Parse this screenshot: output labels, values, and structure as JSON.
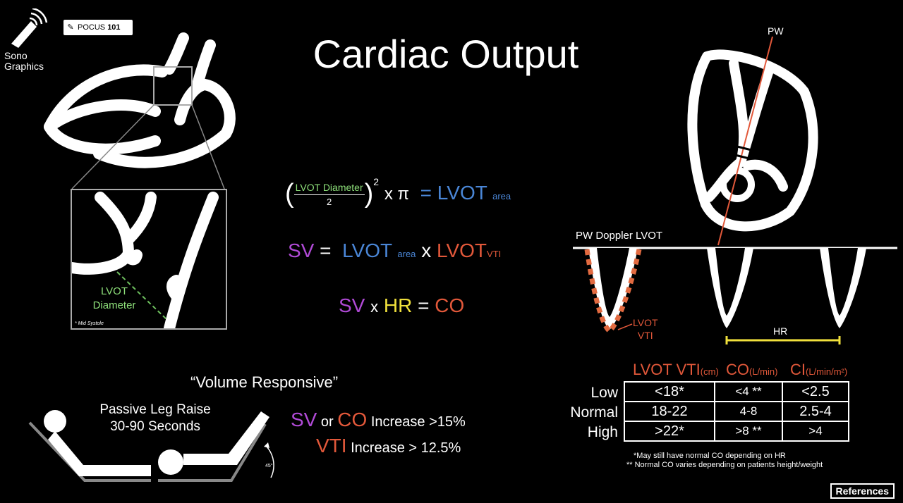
{
  "title": "Cardiac Output",
  "logo": {
    "line1": "Sono",
    "line2": "Graphics",
    "badge_prefix": "POCUS",
    "badge_number": "101"
  },
  "inset": {
    "label_line1": "LVOT",
    "label_line2": "Diameter",
    "note": "* Mid Systole"
  },
  "formulas": {
    "f1_numerator": "LVOT Diameter",
    "f1_denominator": "2",
    "f1_power": "2",
    "f1_op": "x π",
    "f1_eq": "= LVOT",
    "f1_sub": "area",
    "f2_sv": "SV",
    "f2_eq": "=",
    "f2_lvot": "LVOT",
    "f2_area": "area",
    "f2_x": "x",
    "f2_lvot2": "LVOT",
    "f2_vti": "VTI",
    "f3_sv": "SV",
    "f3_x": "x",
    "f3_hr": "HR",
    "f3_eq": "=",
    "f3_co": "CO"
  },
  "doppler": {
    "pw_label": "PW",
    "title": "PW Doppler LVOT",
    "vti_line1": "LVOT",
    "vti_line2": "VTI",
    "hr_label": "HR"
  },
  "volume": {
    "title": "“Volume Responsive”",
    "plr_line1": "Passive Leg Raise",
    "plr_line2": "30-90 Seconds",
    "angle": "45°",
    "r1_sv": "SV",
    "r1_or": "or",
    "r1_co": "CO",
    "r1_text": "Increase >15%",
    "r2_vti": "VTI",
    "r2_text": "Increase > 12.5%"
  },
  "table": {
    "headers": [
      {
        "main": "LVOT VTI",
        "unit": "(cm)"
      },
      {
        "main": "CO",
        "unit": "(L/min)"
      },
      {
        "main": "CI",
        "unit": "(L/min/m²)"
      }
    ],
    "rows": [
      {
        "label": "Low",
        "cells": [
          "<18*",
          "<4 **",
          "<2.5"
        ]
      },
      {
        "label": "Normal",
        "cells": [
          "18-22",
          "4-8",
          "2.5-4"
        ]
      },
      {
        "label": "High",
        "cells": [
          ">22*",
          ">8 **",
          ">4"
        ]
      }
    ],
    "foot1": "*May still have normal CO depending on HR",
    "foot2": "** Normal CO varies depending on patients height/weight"
  },
  "references_label": "References",
  "colors": {
    "blue": "#4a86d6",
    "purple": "#b04ad6",
    "orange": "#e2583a",
    "yellow": "#f0e03c",
    "green": "#8ee07a"
  }
}
